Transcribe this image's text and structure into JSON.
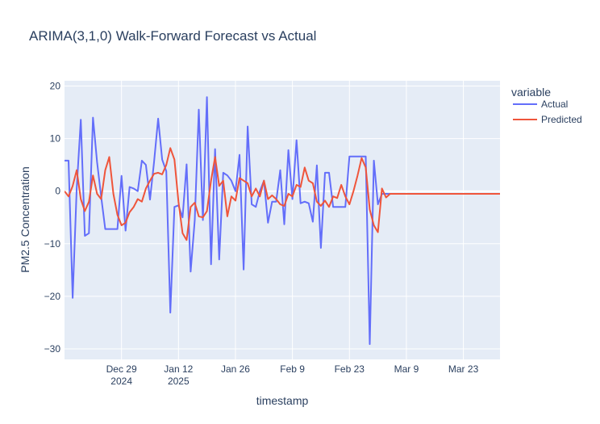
{
  "chart_data": {
    "type": "line",
    "title": "ARIMA(3,1,0) Walk-Forward Forecast vs Actual",
    "xlabel": "timestamp",
    "ylabel": "PM2.5 Concentration",
    "x_range": [
      "2024-12-15",
      "2025-04-01"
    ],
    "ylim": [
      -32,
      21
    ],
    "x_ticks": [
      {
        "date": "2024-12-29",
        "label": "Dec 29",
        "sublabel": "2024"
      },
      {
        "date": "2025-01-12",
        "label": "Jan 12",
        "sublabel": "2025"
      },
      {
        "date": "2025-01-26",
        "label": "Jan 26",
        "sublabel": ""
      },
      {
        "date": "2025-02-09",
        "label": "Feb 9",
        "sublabel": ""
      },
      {
        "date": "2025-02-23",
        "label": "Feb 23",
        "sublabel": ""
      },
      {
        "date": "2025-03-09",
        "label": "Mar 9",
        "sublabel": ""
      },
      {
        "date": "2025-03-23",
        "label": "Mar 23",
        "sublabel": ""
      }
    ],
    "y_ticks": [
      20,
      10,
      0,
      -10,
      -20,
      -30
    ],
    "grid": true,
    "legend": {
      "title": "variable",
      "position": "right"
    },
    "series": [
      {
        "name": "Actual",
        "color": "#636efa",
        "points": [
          [
            "2024-12-15",
            5.8
          ],
          [
            "2024-12-16",
            5.8
          ],
          [
            "2024-12-17",
            -20.3
          ],
          [
            "2024-12-18",
            0.5
          ],
          [
            "2024-12-19",
            13.6
          ],
          [
            "2024-12-20",
            -8.5
          ],
          [
            "2024-12-21",
            -8.0
          ],
          [
            "2024-12-22",
            14.0
          ],
          [
            "2024-12-23",
            5.5
          ],
          [
            "2024-12-24",
            -1.0
          ],
          [
            "2024-12-25",
            -7.2
          ],
          [
            "2024-12-26",
            -7.2
          ],
          [
            "2024-12-27",
            -7.2
          ],
          [
            "2024-12-28",
            -7.2
          ],
          [
            "2024-12-29",
            2.9
          ],
          [
            "2024-12-30",
            -7.5
          ],
          [
            "2024-12-31",
            0.8
          ],
          [
            "2025-01-01",
            0.5
          ],
          [
            "2025-01-02",
            0.0
          ],
          [
            "2025-01-03",
            5.8
          ],
          [
            "2025-01-04",
            5.0
          ],
          [
            "2025-01-05",
            -1.6
          ],
          [
            "2025-01-06",
            5.5
          ],
          [
            "2025-01-07",
            13.8
          ],
          [
            "2025-01-08",
            6.0
          ],
          [
            "2025-01-09",
            3.8
          ],
          [
            "2025-01-10",
            -23.1
          ],
          [
            "2025-01-11",
            -3.0
          ],
          [
            "2025-01-12",
            -2.7
          ],
          [
            "2025-01-13",
            -5.0
          ],
          [
            "2025-01-14",
            5.1
          ],
          [
            "2025-01-15",
            -15.3
          ],
          [
            "2025-01-16",
            -5.5
          ],
          [
            "2025-01-17",
            15.5
          ],
          [
            "2025-01-18",
            -5.5
          ],
          [
            "2025-01-19",
            17.9
          ],
          [
            "2025-01-20",
            -13.9
          ],
          [
            "2025-01-21",
            8.0
          ],
          [
            "2025-01-22",
            -13.0
          ],
          [
            "2025-01-23",
            3.5
          ],
          [
            "2025-01-24",
            3.0
          ],
          [
            "2025-01-25",
            2.0
          ],
          [
            "2025-01-26",
            0.0
          ],
          [
            "2025-01-27",
            6.9
          ],
          [
            "2025-01-28",
            -14.9
          ],
          [
            "2025-01-29",
            12.3
          ],
          [
            "2025-01-30",
            -2.5
          ],
          [
            "2025-01-31",
            -3.0
          ],
          [
            "2025-02-01",
            0.0
          ],
          [
            "2025-02-02",
            2.0
          ],
          [
            "2025-02-03",
            -6.0
          ],
          [
            "2025-02-04",
            -2.0
          ],
          [
            "2025-02-05",
            -2.0
          ],
          [
            "2025-02-06",
            4.0
          ],
          [
            "2025-02-07",
            -6.3
          ],
          [
            "2025-02-08",
            7.8
          ],
          [
            "2025-02-09",
            -1.5
          ],
          [
            "2025-02-10",
            9.7
          ],
          [
            "2025-02-11",
            -2.3
          ],
          [
            "2025-02-12",
            -2.0
          ],
          [
            "2025-02-13",
            -2.3
          ],
          [
            "2025-02-14",
            -5.8
          ],
          [
            "2025-02-15",
            4.9
          ],
          [
            "2025-02-16",
            -10.8
          ],
          [
            "2025-02-17",
            3.5
          ],
          [
            "2025-02-18",
            3.5
          ],
          [
            "2025-02-19",
            -3.0
          ],
          [
            "2025-02-20",
            -3.0
          ],
          [
            "2025-02-21",
            -3.0
          ],
          [
            "2025-02-22",
            -3.0
          ],
          [
            "2025-02-23",
            6.6
          ],
          [
            "2025-02-24",
            6.6
          ],
          [
            "2025-02-25",
            6.6
          ],
          [
            "2025-02-26",
            6.6
          ],
          [
            "2025-02-27",
            6.6
          ],
          [
            "2025-02-28",
            -29.1
          ],
          [
            "2025-03-01",
            5.8
          ],
          [
            "2025-03-02",
            -2.5
          ],
          [
            "2025-03-03",
            -0.5
          ],
          [
            "2025-03-04",
            -0.5
          ],
          [
            "2025-03-05",
            -0.5
          ],
          [
            "2025-03-06",
            -0.5
          ],
          [
            "2025-04-01",
            -0.5
          ]
        ]
      },
      {
        "name": "Predicted",
        "color": "#ef553b",
        "points": [
          [
            "2024-12-15",
            0.0
          ],
          [
            "2024-12-16",
            -1.0
          ],
          [
            "2024-12-17",
            1.0
          ],
          [
            "2024-12-18",
            4.0
          ],
          [
            "2024-12-19",
            -1.5
          ],
          [
            "2024-12-20",
            -3.8
          ],
          [
            "2024-12-21",
            -2.0
          ],
          [
            "2024-12-22",
            3.0
          ],
          [
            "2024-12-23",
            -0.5
          ],
          [
            "2024-12-24",
            -1.5
          ],
          [
            "2024-12-25",
            4.0
          ],
          [
            "2024-12-26",
            6.5
          ],
          [
            "2024-12-27",
            -0.5
          ],
          [
            "2024-12-28",
            -4.5
          ],
          [
            "2024-12-29",
            -6.5
          ],
          [
            "2024-12-30",
            -6.0
          ],
          [
            "2024-12-31",
            -4.0
          ],
          [
            "2025-01-01",
            -3.0
          ],
          [
            "2025-01-02",
            -1.5
          ],
          [
            "2025-01-03",
            -2.0
          ],
          [
            "2025-01-04",
            0.5
          ],
          [
            "2025-01-05",
            2.0
          ],
          [
            "2025-01-06",
            3.3
          ],
          [
            "2025-01-07",
            3.5
          ],
          [
            "2025-01-08",
            3.2
          ],
          [
            "2025-01-09",
            5.0
          ],
          [
            "2025-01-10",
            8.2
          ],
          [
            "2025-01-11",
            6.0
          ],
          [
            "2025-01-12",
            -2.0
          ],
          [
            "2025-01-13",
            -8.0
          ],
          [
            "2025-01-14",
            -9.3
          ],
          [
            "2025-01-15",
            -3.0
          ],
          [
            "2025-01-16",
            -2.2
          ],
          [
            "2025-01-17",
            -4.8
          ],
          [
            "2025-01-18",
            -5.0
          ],
          [
            "2025-01-19",
            -3.8
          ],
          [
            "2025-01-20",
            2.0
          ],
          [
            "2025-01-21",
            6.5
          ],
          [
            "2025-01-22",
            1.0
          ],
          [
            "2025-01-23",
            2.0
          ],
          [
            "2025-01-24",
            -4.8
          ],
          [
            "2025-01-25",
            -1.0
          ],
          [
            "2025-01-26",
            -1.8
          ],
          [
            "2025-01-27",
            2.5
          ],
          [
            "2025-01-28",
            2.0
          ],
          [
            "2025-01-29",
            1.5
          ],
          [
            "2025-01-30",
            -1.0
          ],
          [
            "2025-01-31",
            0.5
          ],
          [
            "2025-02-01",
            -1.0
          ],
          [
            "2025-02-02",
            2.0
          ],
          [
            "2025-02-03",
            -1.5
          ],
          [
            "2025-02-04",
            -0.8
          ],
          [
            "2025-02-05",
            -1.5
          ],
          [
            "2025-02-06",
            -2.5
          ],
          [
            "2025-02-07",
            -2.8
          ],
          [
            "2025-02-08",
            -0.5
          ],
          [
            "2025-02-09",
            -1.0
          ],
          [
            "2025-02-10",
            1.2
          ],
          [
            "2025-02-11",
            0.8
          ],
          [
            "2025-02-12",
            4.5
          ],
          [
            "2025-02-13",
            2.0
          ],
          [
            "2025-02-14",
            1.5
          ],
          [
            "2025-02-15",
            -2.0
          ],
          [
            "2025-02-16",
            -2.8
          ],
          [
            "2025-02-17",
            -1.8
          ],
          [
            "2025-02-18",
            -3.0
          ],
          [
            "2025-02-19",
            -1.0
          ],
          [
            "2025-02-20",
            -1.3
          ],
          [
            "2025-02-21",
            1.2
          ],
          [
            "2025-02-22",
            -1.0
          ],
          [
            "2025-02-23",
            -2.5
          ],
          [
            "2025-02-24",
            0.0
          ],
          [
            "2025-02-25",
            3.0
          ],
          [
            "2025-02-26",
            6.3
          ],
          [
            "2025-02-27",
            4.5
          ],
          [
            "2025-02-28",
            -3.5
          ],
          [
            "2025-03-01",
            -6.5
          ],
          [
            "2025-03-02",
            -7.8
          ],
          [
            "2025-03-03",
            0.5
          ],
          [
            "2025-03-04",
            -1.2
          ],
          [
            "2025-03-05",
            -0.5
          ],
          [
            "2025-03-06",
            -0.5
          ],
          [
            "2025-04-01",
            -0.5
          ]
        ]
      }
    ]
  }
}
